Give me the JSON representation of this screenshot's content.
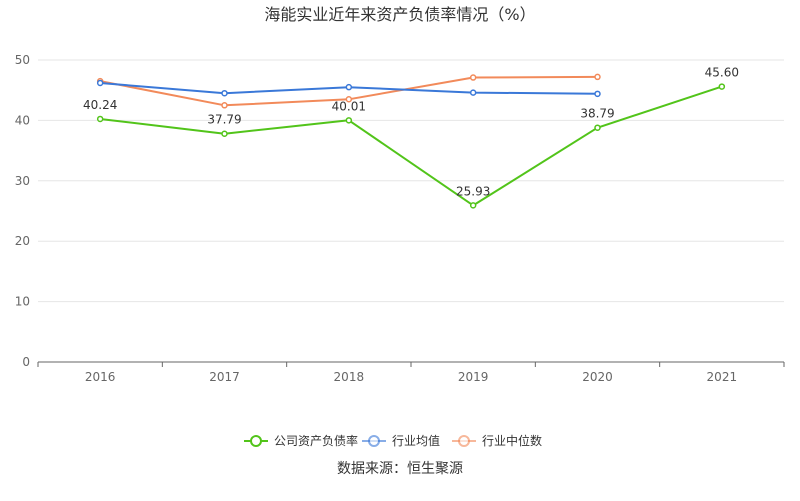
{
  "chart_data": {
    "type": "line",
    "title": "海能实业近年来资产负债率情况（%）",
    "categories": [
      "2016",
      "2017",
      "2018",
      "2019",
      "2020",
      "2021"
    ],
    "ylim": [
      0,
      50
    ],
    "yticks": [
      "0",
      "10",
      "20",
      "30",
      "40",
      "50"
    ],
    "grid": true,
    "legend_position": "bottom",
    "series": [
      {
        "name": "公司资产负债率",
        "color": "#52c41a",
        "values": [
          40.24,
          37.79,
          40.01,
          25.93,
          38.79,
          45.6
        ],
        "labels": [
          "40.24",
          "37.79",
          "40.01",
          "25.93",
          "38.79",
          "45.60"
        ],
        "show_labels": true
      },
      {
        "name": "行业均值",
        "color": "#3a78d8",
        "values": [
          46.2,
          44.5,
          45.5,
          44.6,
          44.4,
          null
        ],
        "show_labels": false
      },
      {
        "name": "行业中位数",
        "color": "#f28a5a",
        "values": [
          46.5,
          42.5,
          43.5,
          47.1,
          47.2,
          null
        ],
        "show_labels": false
      }
    ],
    "source": "数据来源：恒生聚源"
  }
}
